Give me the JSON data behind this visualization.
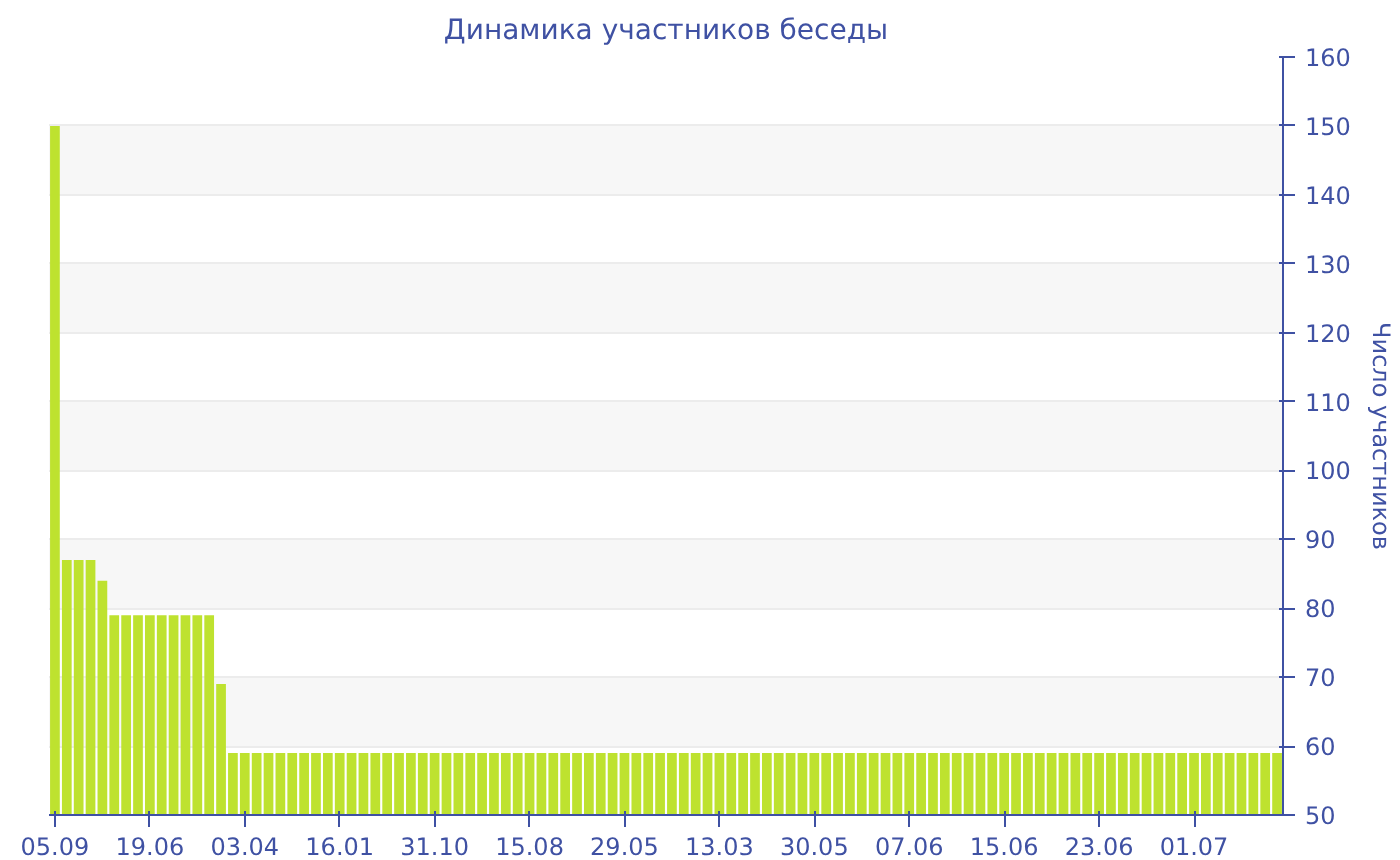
{
  "chart_data": {
    "type": "bar",
    "title": "Динамика участников беседы",
    "ylabel": "Число участников",
    "categories": [
      "05.09",
      null,
      null,
      null,
      null,
      null,
      null,
      null,
      "19.06",
      null,
      null,
      null,
      null,
      null,
      null,
      null,
      "03.04",
      null,
      null,
      null,
      null,
      null,
      null,
      null,
      "16.01",
      null,
      null,
      null,
      null,
      null,
      null,
      null,
      "31.10",
      null,
      null,
      null,
      null,
      null,
      null,
      null,
      "15.08",
      null,
      null,
      null,
      null,
      null,
      null,
      null,
      "29.05",
      null,
      null,
      null,
      null,
      null,
      null,
      null,
      "13.03",
      null,
      null,
      null,
      null,
      null,
      null,
      null,
      "30.05",
      null,
      null,
      null,
      null,
      null,
      null,
      null,
      "07.06",
      null,
      null,
      null,
      null,
      null,
      null,
      null,
      "15.06",
      null,
      null,
      null,
      null,
      null,
      null,
      null,
      "23.06",
      null,
      null,
      null,
      null,
      null,
      null,
      null,
      "01.07",
      null,
      null,
      null,
      null,
      null,
      null,
      null
    ],
    "values": [
      150,
      87,
      87,
      87,
      84,
      79,
      79,
      79,
      79,
      79,
      79,
      79,
      79,
      79,
      69,
      59,
      59,
      59,
      59,
      59,
      59,
      59,
      59,
      59,
      59,
      59,
      59,
      59,
      59,
      59,
      59,
      59,
      59,
      59,
      59,
      59,
      59,
      59,
      59,
      59,
      59,
      59,
      59,
      59,
      59,
      59,
      59,
      59,
      59,
      59,
      59,
      59,
      59,
      59,
      59,
      59,
      59,
      59,
      59,
      59,
      59,
      59,
      59,
      59,
      59,
      59,
      59,
      59,
      59,
      59,
      59,
      59,
      59,
      59,
      59,
      59,
      59,
      59,
      59,
      59,
      59,
      59,
      59,
      59,
      59,
      59,
      59,
      59,
      59,
      59,
      59,
      59,
      59,
      59,
      59,
      59,
      59,
      59,
      59,
      59,
      59,
      59,
      59,
      59
    ],
    "color": "#bee22f",
    "ylim": [
      50,
      160
    ],
    "yticks": [
      50,
      60,
      70,
      80,
      90,
      100,
      110,
      120,
      130,
      140,
      150,
      160
    ],
    "grid": "y"
  }
}
